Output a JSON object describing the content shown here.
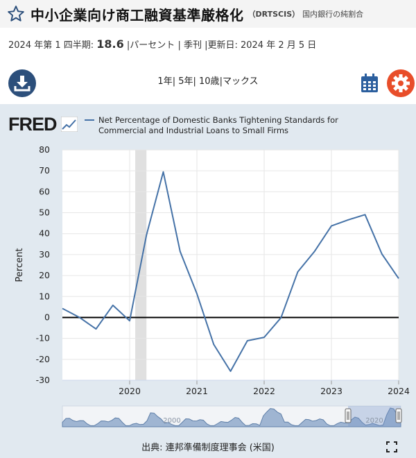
{
  "header": {
    "title": "中小企業向け商工融資基準厳格化",
    "series_id": "（DRTSCIS）",
    "subtitle": "国内銀行の純割合"
  },
  "meta": {
    "period": "2024 年第 1 四半期:",
    "value": "18.6",
    "unit": "|パーセント",
    "frequency": "| 季刊",
    "updated": "|更新日: 2024 年 2 月 5 日"
  },
  "toolbar": {
    "ranges": [
      "1年",
      "| 5年",
      "| 10歳",
      "|マックス"
    ],
    "download_icon": "download-icon",
    "calendar_icon": "calendar-icon",
    "settings_icon": "gear-icon"
  },
  "chart_header": {
    "logo_text": "FRED",
    "legend_line1": "Net Percentage of Domestic Banks Tightening Standards for",
    "legend_line2": "Commercial and Industrial Loans to Small Firms"
  },
  "colors": {
    "series": "#4572a7",
    "panel_bg": "#e1e9f0",
    "recession": "#e0e0e0",
    "download_btn": "#2c4f7b",
    "settings_btn": "#e84e2a",
    "calendar": "#2c5f9e"
  },
  "chart_data": {
    "type": "line",
    "ylabel": "Percent",
    "ylim": [
      -30,
      80
    ],
    "yticks": [
      80,
      70,
      60,
      50,
      40,
      30,
      20,
      10,
      0,
      -10,
      -20,
      -30
    ],
    "xticks": [
      "2020",
      "2021",
      "2022",
      "2023",
      "2024"
    ],
    "grid": true,
    "legend_placement": "top",
    "zero_line": true,
    "recession": {
      "start": "2020-02",
      "end": "2020-04"
    },
    "series": [
      {
        "name": "Net Percentage of Domestic Banks Tightening Standards for Commercial and Industrial Loans to Small Firms",
        "x": [
          "2019-01",
          "2019-04",
          "2019-07",
          "2019-10",
          "2020-01",
          "2020-04",
          "2020-07",
          "2020-10",
          "2021-01",
          "2021-04",
          "2021-07",
          "2021-10",
          "2022-01",
          "2022-04",
          "2022-07",
          "2022-10",
          "2023-01",
          "2023-04",
          "2023-07",
          "2023-10",
          "2024-01"
        ],
        "y": [
          4.3,
          0.1,
          -5.5,
          5.8,
          -1.6,
          39.4,
          69.5,
          31.5,
          11.3,
          -12.9,
          -25.7,
          -11.1,
          -9.5,
          -0.1,
          21.8,
          31.6,
          43.7,
          46.6,
          49.1,
          30.3,
          18.6
        ]
      }
    ]
  },
  "navigator": {
    "tick_label_left": "2000",
    "tick_label_right": "2020"
  },
  "footer": {
    "source": "出典: 連邦準備制度理事会 (米国)",
    "fullscreen_icon": "fullscreen-icon"
  }
}
